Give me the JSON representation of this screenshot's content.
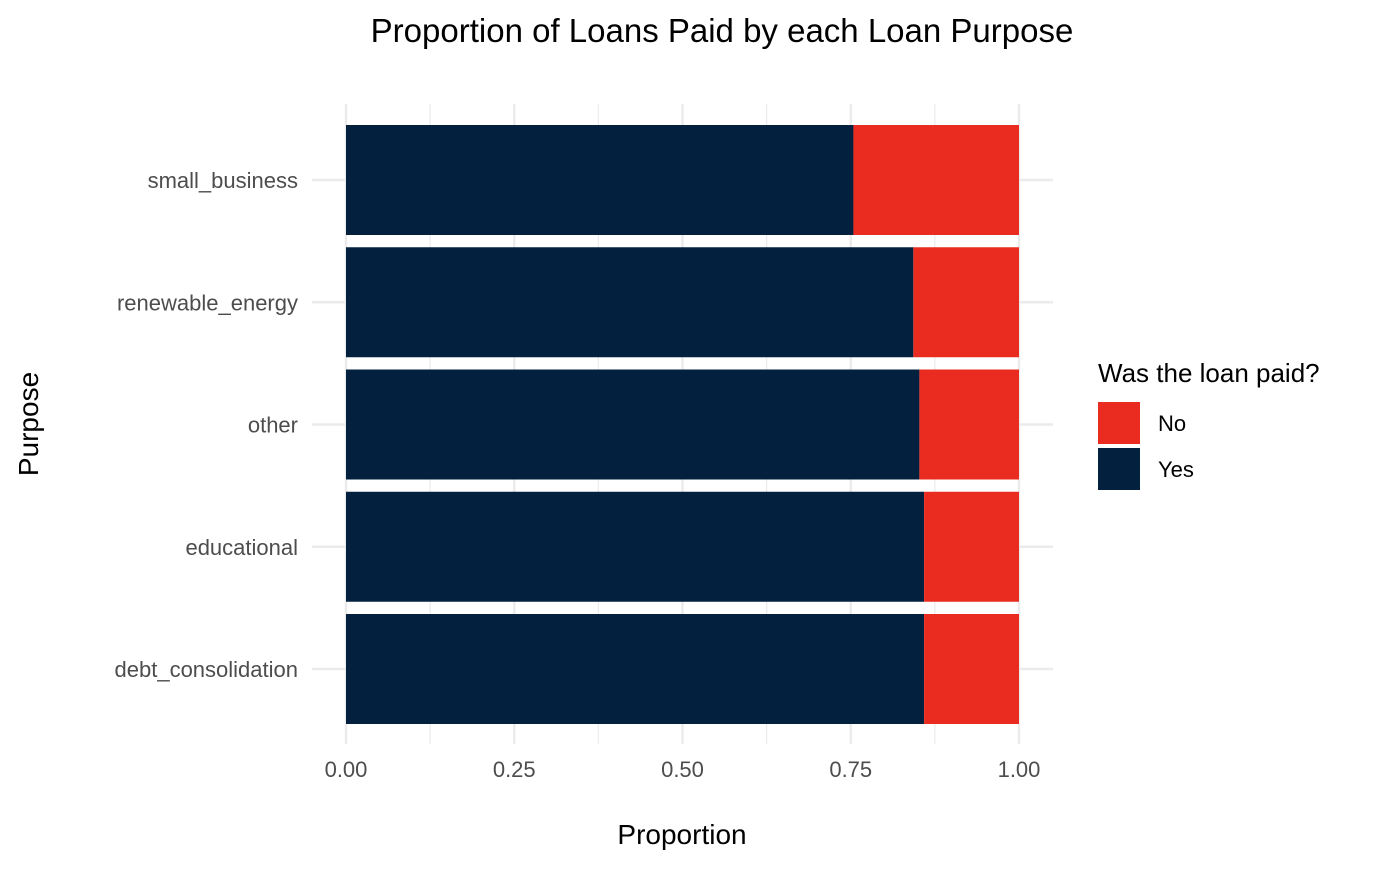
{
  "chart_data": {
    "type": "bar",
    "orientation": "horizontal",
    "stacked": true,
    "title": "Proportion of Loans Paid by each Loan Purpose",
    "xlabel": "Proportion",
    "ylabel": "Purpose",
    "xlim": [
      0,
      1
    ],
    "x_ticks": [
      "0.00",
      "0.25",
      "0.50",
      "0.75",
      "1.00"
    ],
    "categories": [
      "debt_consolidation",
      "educational",
      "other",
      "renewable_energy",
      "small_business"
    ],
    "series": [
      {
        "name": "Yes",
        "color": "#03203E",
        "values": [
          0.859,
          0.859,
          0.852,
          0.843,
          0.754
        ]
      },
      {
        "name": "No",
        "color": "#EA2B1F",
        "values": [
          0.141,
          0.141,
          0.148,
          0.157,
          0.246
        ]
      }
    ],
    "legend": {
      "title": "Was the loan paid?",
      "position": "right",
      "items": [
        {
          "label": "No",
          "color": "#EA2B1F"
        },
        {
          "label": "Yes",
          "color": "#03203E"
        }
      ]
    },
    "grid": true
  }
}
